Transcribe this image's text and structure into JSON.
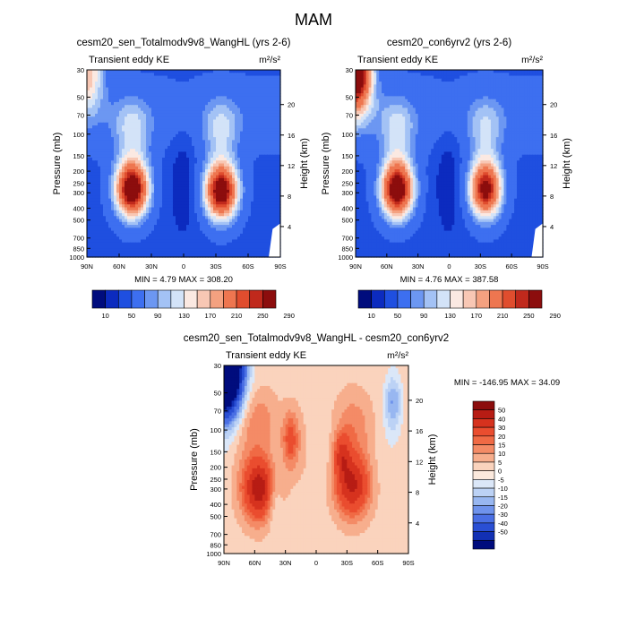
{
  "page": {
    "title": "MAM"
  },
  "chart_data": [
    {
      "type": "heatmap",
      "id": "p1",
      "title": "cesm20_sen_Totalmodv9v8_WangHL (yrs 2-6)",
      "subtitle_left": "Transient eddy KE",
      "units": "m²/s²",
      "xlabel": "",
      "ylabel": "Pressure (mb)",
      "ylabel_right": "Height (km)",
      "x_ticks": [
        "90N",
        "60N",
        "30N",
        "0",
        "30S",
        "60S",
        "90S"
      ],
      "y_ticks": [
        "30",
        "50",
        "70",
        "100",
        "150",
        "200",
        "250",
        "300",
        "400",
        "500",
        "700",
        "850",
        "1000"
      ],
      "y_right_ticks": [
        "4",
        "8",
        "12",
        "16",
        "20"
      ],
      "stats": "MIN =   4.79  MAX = 308.20",
      "colorbar_labels": [
        "10",
        "50",
        "90",
        "130",
        "170",
        "210",
        "250",
        "290"
      ],
      "colorbar_colors": [
        "#000c7d",
        "#0c2bbf",
        "#1f4fe0",
        "#3d6ff0",
        "#6c97f2",
        "#a3c2f5",
        "#d3e3f8",
        "#fbe9e2",
        "#f8c7b4",
        "#f4a180",
        "#ee7650",
        "#e04d2e",
        "#c0291c",
        "#8c0d0d"
      ],
      "levels": [
        10,
        30,
        50,
        70,
        90,
        110,
        130,
        150,
        170,
        190,
        210,
        230,
        250,
        270,
        290
      ],
      "features": [
        {
          "kind": "jet",
          "lat": -35,
          "p": 290,
          "amp": 290
        },
        {
          "kind": "jet",
          "lat": 48,
          "p": 280,
          "amp": 300
        },
        {
          "kind": "strat_nh",
          "amp": 140
        }
      ]
    },
    {
      "type": "heatmap",
      "id": "p2",
      "title": "cesm20_con6yrv2 (yrs 2-6)",
      "subtitle_left": "Transient eddy KE",
      "units": "m²/s²",
      "xlabel": "",
      "ylabel": "Pressure (mb)",
      "ylabel_right": "Height (km)",
      "x_ticks": [
        "90N",
        "60N",
        "30N",
        "0",
        "30S",
        "60S",
        "90S"
      ],
      "y_ticks": [
        "30",
        "50",
        "70",
        "100",
        "150",
        "200",
        "250",
        "300",
        "400",
        "500",
        "700",
        "850",
        "1000"
      ],
      "y_right_ticks": [
        "4",
        "8",
        "12",
        "16",
        "20"
      ],
      "stats": "MIN =   4.76  MAX = 387.58",
      "colorbar_labels": [
        "10",
        "50",
        "90",
        "130",
        "170",
        "210",
        "250",
        "290"
      ],
      "colorbar_colors": [
        "#000c7d",
        "#0c2bbf",
        "#1f4fe0",
        "#3d6ff0",
        "#6c97f2",
        "#a3c2f5",
        "#d3e3f8",
        "#fbe9e2",
        "#f8c7b4",
        "#f4a180",
        "#ee7650",
        "#e04d2e",
        "#c0291c",
        "#8c0d0d"
      ],
      "levels": [
        10,
        30,
        50,
        70,
        90,
        110,
        130,
        150,
        170,
        190,
        210,
        230,
        250,
        270,
        290
      ],
      "features": [
        {
          "kind": "jet",
          "lat": -35,
          "p": 280,
          "amp": 270
        },
        {
          "kind": "jet",
          "lat": 50,
          "p": 280,
          "amp": 300
        },
        {
          "kind": "strat_nh",
          "amp": 320
        }
      ]
    },
    {
      "type": "heatmap",
      "id": "p3",
      "title": "cesm20_sen_Totalmodv9v8_WangHL - cesm20_con6yrv2",
      "subtitle_left": "Transient eddy KE",
      "units": "m²/s²",
      "xlabel": "",
      "ylabel": "Pressure (mb)",
      "ylabel_right": "Height (km)",
      "x_ticks": [
        "90N",
        "60N",
        "30N",
        "0",
        "30S",
        "60S",
        "90S"
      ],
      "y_ticks": [
        "30",
        "50",
        "70",
        "100",
        "150",
        "200",
        "250",
        "300",
        "400",
        "500",
        "700",
        "850",
        "1000"
      ],
      "y_right_ticks": [
        "4",
        "8",
        "12",
        "16",
        "20"
      ],
      "stats": "MIN = -146.95  MAX =  34.09",
      "colorbar_labels": [
        "50",
        "40",
        "30",
        "20",
        "15",
        "10",
        "5",
        "0",
        "-5",
        "-10",
        "-15",
        "-20",
        "-30",
        "-40",
        "-50"
      ],
      "colorbar_colors": [
        "#8c0d0d",
        "#b71c14",
        "#d6321e",
        "#ea4d2f",
        "#f06a45",
        "#f48b66",
        "#f7ae8d",
        "#fad3bd",
        "#fbe9dd",
        "#dbe7f8",
        "#bcd2f5",
        "#98b7f1",
        "#6f93ec",
        "#4a6fe4",
        "#2a4fd4",
        "#1230b4",
        "#000c7d"
      ],
      "levels": [
        -50,
        -40,
        -30,
        -20,
        -15,
        -10,
        -5,
        0,
        5,
        10,
        15,
        20,
        30,
        40,
        50
      ],
      "features": [
        {
          "kind": "jet",
          "lat": -35,
          "p": 280,
          "amp": 38
        },
        {
          "kind": "jet",
          "lat": 55,
          "p": 300,
          "amp": 45
        },
        {
          "kind": "strat_nh",
          "amp": -150
        }
      ]
    }
  ]
}
